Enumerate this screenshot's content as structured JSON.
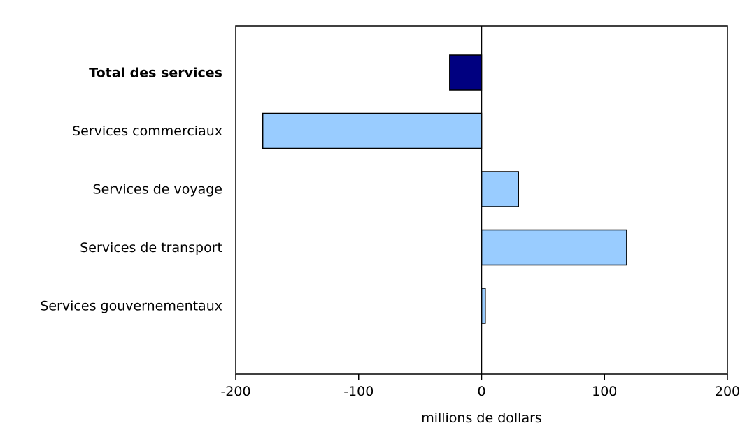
{
  "chart_data": {
    "type": "bar",
    "orientation": "horizontal",
    "title": "",
    "xlabel": "millions de dollars",
    "ylabel": "",
    "xlim": [
      -200,
      200
    ],
    "xticks": [
      {
        "value": -200,
        "label": "-200"
      },
      {
        "value": -100,
        "label": "-100"
      },
      {
        "value": 0,
        "label": "0"
      },
      {
        "value": 100,
        "label": "100"
      },
      {
        "value": 200,
        "label": "200"
      }
    ],
    "grid": false,
    "categories": [
      {
        "label": "Total des services",
        "value": -26,
        "emphasis": true,
        "color": "#000080"
      },
      {
        "label": "Services commerciaux",
        "value": -178,
        "emphasis": false,
        "color": "#99ccff"
      },
      {
        "label": "Services de voyage",
        "value": 30,
        "emphasis": false,
        "color": "#99ccff"
      },
      {
        "label": "Services de transport",
        "value": 118,
        "emphasis": false,
        "color": "#99ccff"
      },
      {
        "label": "Services gouvernementaux",
        "value": 3,
        "emphasis": false,
        "color": "#99ccff"
      }
    ]
  }
}
